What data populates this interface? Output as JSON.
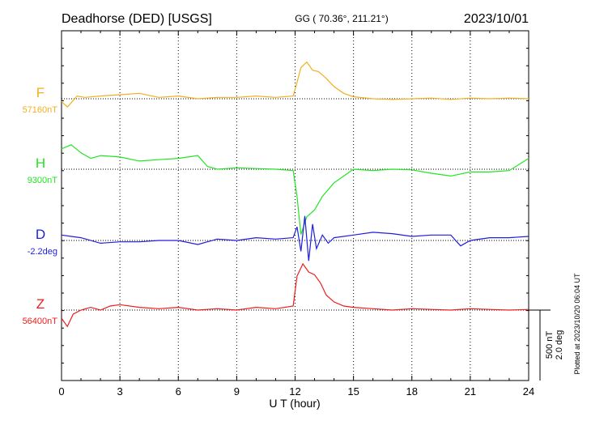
{
  "header": {
    "title": "Deadhorse (DED)  [USGS]",
    "coords": "GG ( 70.36°, 211.21°)",
    "date": "2023/10/01"
  },
  "footer": {
    "xlabel": "U T (hour)",
    "plotted_note": "Plotted at 2023/10/20 06:04 UT"
  },
  "scale_bar": {
    "nT_label": "500 nT",
    "deg_label": "2.0 deg"
  },
  "chart_data": {
    "type": "line",
    "xlabel": "U T (hour)",
    "xlim": [
      0,
      24
    ],
    "x_ticks": [
      0,
      3,
      6,
      9,
      12,
      15,
      18,
      21,
      24
    ],
    "grid": true,
    "series": [
      {
        "name": "F",
        "baseline_label": "57160nT",
        "color": "#f0b020",
        "x": [
          0,
          0.3,
          0.5,
          0.8,
          1.2,
          2,
          3,
          4,
          5,
          6,
          7,
          8,
          9,
          10,
          11,
          11.9,
          12.1,
          12.3,
          12.6,
          12.9,
          13.2,
          13.6,
          14,
          14.5,
          15,
          16,
          17,
          18,
          19,
          20,
          21,
          22,
          23,
          24
        ],
        "values": [
          -20,
          -60,
          -30,
          20,
          10,
          20,
          30,
          40,
          10,
          20,
          0,
          10,
          10,
          20,
          10,
          20,
          120,
          230,
          270,
          210,
          200,
          150,
          90,
          40,
          15,
          0,
          -5,
          0,
          5,
          -5,
          5,
          0,
          5,
          0
        ]
      },
      {
        "name": "H",
        "baseline_label": "9300nT",
        "color": "#22e522",
        "x": [
          0,
          0.5,
          1,
          1.5,
          2,
          3,
          4,
          5,
          6,
          7,
          7.5,
          8,
          9,
          10,
          11,
          11.9,
          12.1,
          12.3,
          12.6,
          13,
          13.4,
          14,
          14.5,
          15,
          16,
          17,
          18,
          19,
          20,
          21,
          22,
          23,
          24
        ],
        "values": [
          150,
          180,
          120,
          80,
          100,
          90,
          60,
          70,
          80,
          100,
          20,
          0,
          10,
          5,
          0,
          -10,
          -200,
          -480,
          -350,
          -300,
          -200,
          -100,
          -50,
          0,
          -10,
          0,
          -5,
          -30,
          -50,
          -20,
          -20,
          -10,
          80
        ]
      },
      {
        "name": "D",
        "baseline_label": "-2.2deg",
        "color": "#1e1ee0",
        "x": [
          0,
          0.5,
          1,
          2,
          3,
          4,
          5,
          6,
          7,
          8,
          9,
          10,
          11,
          11.9,
          12.1,
          12.3,
          12.5,
          12.7,
          12.9,
          13.1,
          13.4,
          13.7,
          14,
          15,
          16,
          17,
          18,
          19,
          20,
          20.5,
          21,
          22,
          23,
          24
        ],
        "values": [
          40,
          30,
          20,
          -20,
          -10,
          -10,
          0,
          0,
          -30,
          10,
          0,
          20,
          10,
          20,
          100,
          -80,
          180,
          -150,
          120,
          -60,
          40,
          -20,
          20,
          40,
          60,
          50,
          30,
          40,
          40,
          -40,
          0,
          20,
          20,
          30
        ]
      },
      {
        "name": "Z",
        "baseline_label": "56400nT",
        "color": "#ee1c1c",
        "x": [
          0,
          0.3,
          0.6,
          1,
          1.5,
          2,
          2.5,
          3,
          4,
          5,
          6,
          7,
          8,
          9,
          10,
          11,
          11.9,
          12.1,
          12.4,
          12.7,
          13,
          13.3,
          13.6,
          14,
          14.5,
          15,
          16,
          17,
          18,
          19,
          20,
          21,
          22,
          23,
          24
        ],
        "values": [
          -60,
          -120,
          -30,
          0,
          20,
          0,
          30,
          40,
          20,
          10,
          20,
          0,
          10,
          0,
          20,
          10,
          30,
          250,
          340,
          280,
          260,
          200,
          110,
          60,
          30,
          20,
          10,
          0,
          10,
          5,
          0,
          10,
          5,
          0,
          5
        ]
      }
    ]
  }
}
